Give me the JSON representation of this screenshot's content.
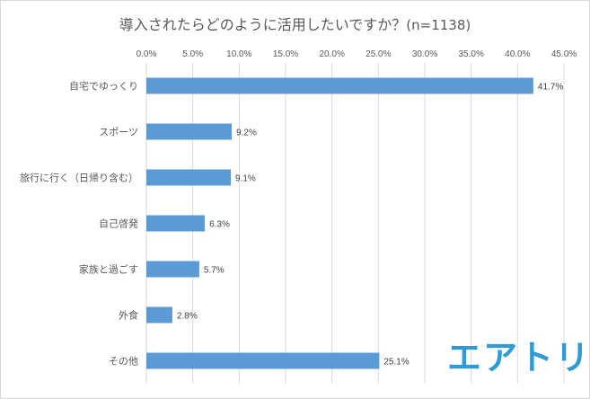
{
  "chart_data": {
    "type": "bar",
    "orientation": "horizontal",
    "title": "導入されたらどのように活用したいですか？",
    "sample_note": "(n=1138)",
    "categories": [
      "自宅でゆっくり",
      "スポーツ",
      "旅行に行く（日帰り含む）",
      "自己啓発",
      "家族と過ごす",
      "外食",
      "その他"
    ],
    "values": [
      41.7,
      9.2,
      9.1,
      6.3,
      5.7,
      2.8,
      25.1
    ],
    "value_labels": [
      "41.7%",
      "9.2%",
      "9.1%",
      "6.3%",
      "5.7%",
      "2.8%",
      "25.1%"
    ],
    "xlim": [
      0,
      45
    ],
    "x_ticks": [
      "0.0%",
      "5.0%",
      "10.0%",
      "15.0%",
      "20.0%",
      "25.0%",
      "30.0%",
      "35.0%",
      "40.0%",
      "45.0%"
    ],
    "x_axis_position": "top",
    "grid": true,
    "bar_color": "#5b9bd5"
  },
  "logo_text": "エアトリ"
}
